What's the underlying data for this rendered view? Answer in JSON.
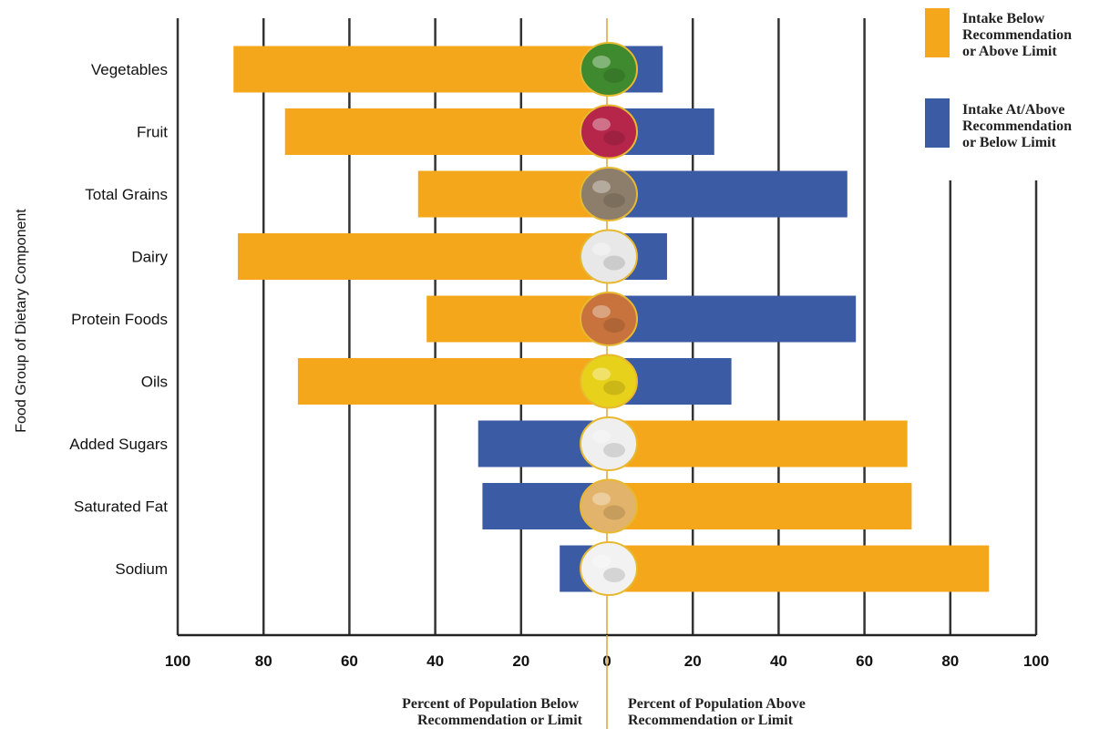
{
  "chart_data": {
    "type": "bar",
    "orientation": "horizontal-diverging",
    "title": "",
    "ylabel": "Food Group of Dietary Component",
    "xlabel_left": [
      "Percent of Population Below",
      "Recommendation or Limit"
    ],
    "xlabel_right": [
      "Percent of Population Above",
      "Recommendation or Limit"
    ],
    "xlim": [
      -100,
      100
    ],
    "x_ticks": [
      100,
      80,
      60,
      40,
      20,
      0,
      20,
      40,
      60,
      80,
      100
    ],
    "grid": true,
    "legend_position": "top-right",
    "legend": [
      {
        "key": "below",
        "lines": [
          "Intake Below",
          "Recommendation",
          "or Above Limit"
        ],
        "color": "#F5A71C"
      },
      {
        "key": "at_above",
        "lines": [
          "Intake At/Above",
          "Recommendation",
          "or Below Limit"
        ],
        "color": "#3B5BA5"
      }
    ],
    "categories": [
      "Vegetables",
      "Fruit",
      "Total Grains",
      "Dairy",
      "Protein Foods",
      "Oils",
      "Added Sugars",
      "Saturated Fat",
      "Sodium"
    ],
    "series": [
      {
        "side": "left",
        "values": [
          87,
          75,
          44,
          86,
          42,
          72,
          30,
          29,
          11
        ],
        "colors": [
          "#F5A71C",
          "#F5A71C",
          "#F5A71C",
          "#F5A71C",
          "#F5A71C",
          "#F5A71C",
          "#3B5BA5",
          "#3B5BA5",
          "#3B5BA5"
        ]
      },
      {
        "side": "right",
        "values": [
          13,
          25,
          56,
          14,
          58,
          29,
          70,
          71,
          89
        ],
        "colors": [
          "#3B5BA5",
          "#3B5BA5",
          "#3B5BA5",
          "#3B5BA5",
          "#3B5BA5",
          "#3B5BA5",
          "#F5A71C",
          "#F5A71C",
          "#F5A71C"
        ]
      }
    ],
    "food_icons": [
      "leafy-greens-icon",
      "raspberries-icon",
      "grains-icon",
      "milk-icon",
      "meat-icon",
      "oil-icon",
      "sugar-icon",
      "butter-icon",
      "salt-icon"
    ],
    "icon_colors": [
      "#3F8A2E",
      "#B5264A",
      "#8C7E6A",
      "#E8E8E8",
      "#C8733D",
      "#E8D11A",
      "#EFEFEF",
      "#E2B36A",
      "#F2F2F2"
    ],
    "colors": {
      "orange": "#F5A71C",
      "blue": "#3B5BA5",
      "grid": "#333333",
      "center_line": "#E0A03A"
    }
  }
}
